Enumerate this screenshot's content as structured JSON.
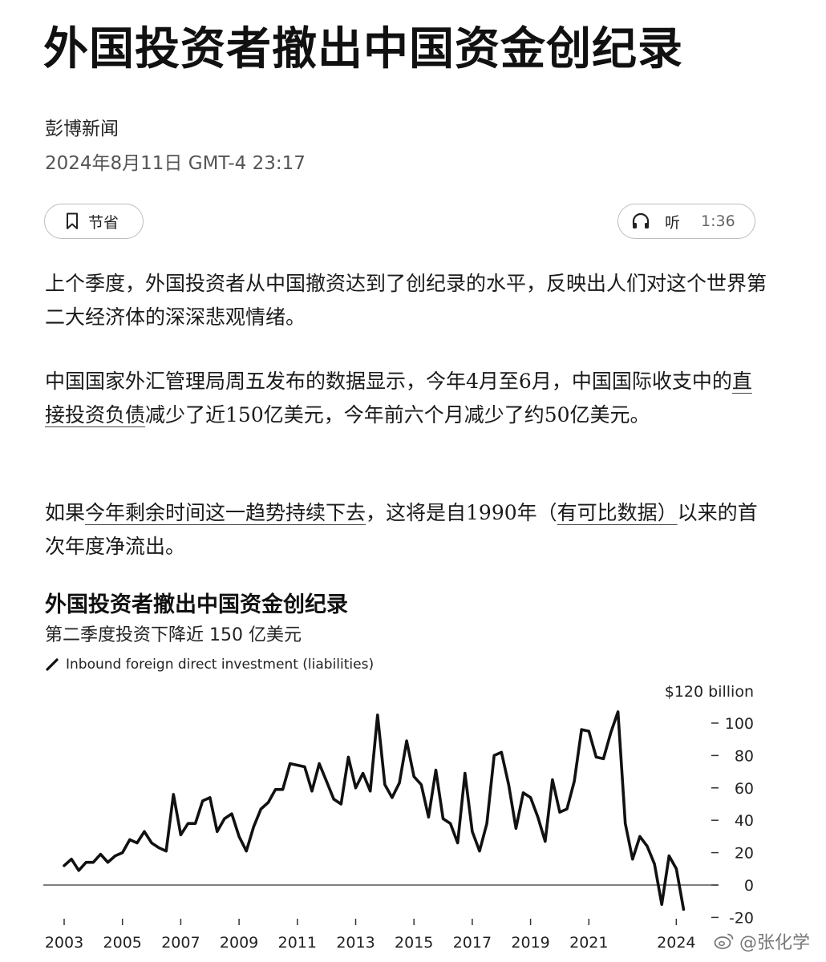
{
  "article": {
    "headline": "外国投资者撤出中国资金创纪录",
    "source": "彭博新闻",
    "date": "2024年8月11日 GMT-4 23:17"
  },
  "actions": {
    "save_label": "节省",
    "listen_label": "听",
    "listen_duration": "1:36"
  },
  "paragraphs": {
    "p1": "上个季度，外国投资者从中国撤资达到了创纪录的水平，反映出人们对这个世界第二大经济体的深深悲观情绪。",
    "p2_a": "中国国家外汇管理局周五发布的数据显示，今年4月至6月，中国国际收支中的",
    "p2_link": "直接投资负债",
    "p2_b": "减少了近150亿美元，今年前六个月减少了约50亿美元。",
    "p3_a": "如果",
    "p3_link1": "今年剩余时间这一趋势持续下去",
    "p3_b": "，这将是自1990年（",
    "p3_link2": "有可比数据）",
    "p3_c": "以来的首次年度净流出。"
  },
  "chart_data": {
    "type": "line",
    "title": "外国投资者撤出中国资金创纪录",
    "subtitle": "第二季度投资下降近 150 亿美元",
    "legend": "Inbound foreign direct investment (liabilities)",
    "unit_label": "$120 billion",
    "ylim": [
      -20,
      120
    ],
    "yticks": [
      100,
      80,
      60,
      40,
      20,
      0,
      -20
    ],
    "xlim": [
      2003,
      2024.5
    ],
    "xticks": [
      "2003",
      "2005",
      "2007",
      "2009",
      "2011",
      "2013",
      "2015",
      "2017",
      "2019",
      "2021",
      "2024"
    ],
    "grid": false,
    "series": [
      {
        "values": [
          [
            2003.0,
            12
          ],
          [
            2003.25,
            16
          ],
          [
            2003.5,
            9
          ],
          [
            2003.75,
            14
          ],
          [
            2004.0,
            14
          ],
          [
            2004.25,
            19
          ],
          [
            2004.5,
            14
          ],
          [
            2004.75,
            18
          ],
          [
            2005.0,
            20
          ],
          [
            2005.25,
            28
          ],
          [
            2005.5,
            26
          ],
          [
            2005.75,
            33
          ],
          [
            2006.0,
            26
          ],
          [
            2006.25,
            23
          ],
          [
            2006.5,
            21
          ],
          [
            2006.75,
            56
          ],
          [
            2007.0,
            31
          ],
          [
            2007.25,
            38
          ],
          [
            2007.5,
            38
          ],
          [
            2007.75,
            52
          ],
          [
            2008.0,
            54
          ],
          [
            2008.25,
            33
          ],
          [
            2008.5,
            41
          ],
          [
            2008.75,
            44
          ],
          [
            2009.0,
            30
          ],
          [
            2009.25,
            21
          ],
          [
            2009.5,
            36
          ],
          [
            2009.75,
            47
          ],
          [
            2010.0,
            51
          ],
          [
            2010.25,
            59
          ],
          [
            2010.5,
            59
          ],
          [
            2010.75,
            75
          ],
          [
            2011.0,
            74
          ],
          [
            2011.25,
            73
          ],
          [
            2011.5,
            58
          ],
          [
            2011.75,
            75
          ],
          [
            2012.0,
            64
          ],
          [
            2012.25,
            53
          ],
          [
            2012.5,
            50
          ],
          [
            2012.75,
            79
          ],
          [
            2013.0,
            60
          ],
          [
            2013.25,
            69
          ],
          [
            2013.5,
            58
          ],
          [
            2013.75,
            105
          ],
          [
            2014.0,
            62
          ],
          [
            2014.25,
            54
          ],
          [
            2014.5,
            63
          ],
          [
            2014.75,
            89
          ],
          [
            2015.0,
            67
          ],
          [
            2015.25,
            62
          ],
          [
            2015.5,
            42
          ],
          [
            2015.75,
            71
          ],
          [
            2016.0,
            41
          ],
          [
            2016.25,
            38
          ],
          [
            2016.5,
            26
          ],
          [
            2016.75,
            69
          ],
          [
            2017.0,
            33
          ],
          [
            2017.25,
            21
          ],
          [
            2017.5,
            38
          ],
          [
            2017.75,
            80
          ],
          [
            2018.0,
            82
          ],
          [
            2018.25,
            62
          ],
          [
            2018.5,
            35
          ],
          [
            2018.75,
            57
          ],
          [
            2019.0,
            54
          ],
          [
            2019.25,
            42
          ],
          [
            2019.5,
            27
          ],
          [
            2019.75,
            65
          ],
          [
            2020.0,
            45
          ],
          [
            2020.25,
            47
          ],
          [
            2020.5,
            64
          ],
          [
            2020.75,
            96
          ],
          [
            2021.0,
            95
          ],
          [
            2021.25,
            79
          ],
          [
            2021.5,
            78
          ],
          [
            2021.75,
            94
          ],
          [
            2022.0,
            107
          ],
          [
            2022.25,
            38
          ],
          [
            2022.5,
            16
          ],
          [
            2022.75,
            30
          ],
          [
            2023.0,
            24
          ],
          [
            2023.25,
            13
          ],
          [
            2023.5,
            -12
          ],
          [
            2023.75,
            18
          ],
          [
            2024.0,
            10
          ],
          [
            2024.25,
            -15
          ]
        ]
      }
    ]
  },
  "watermark": {
    "text": "@张化学",
    "icon": "weibo-icon"
  }
}
